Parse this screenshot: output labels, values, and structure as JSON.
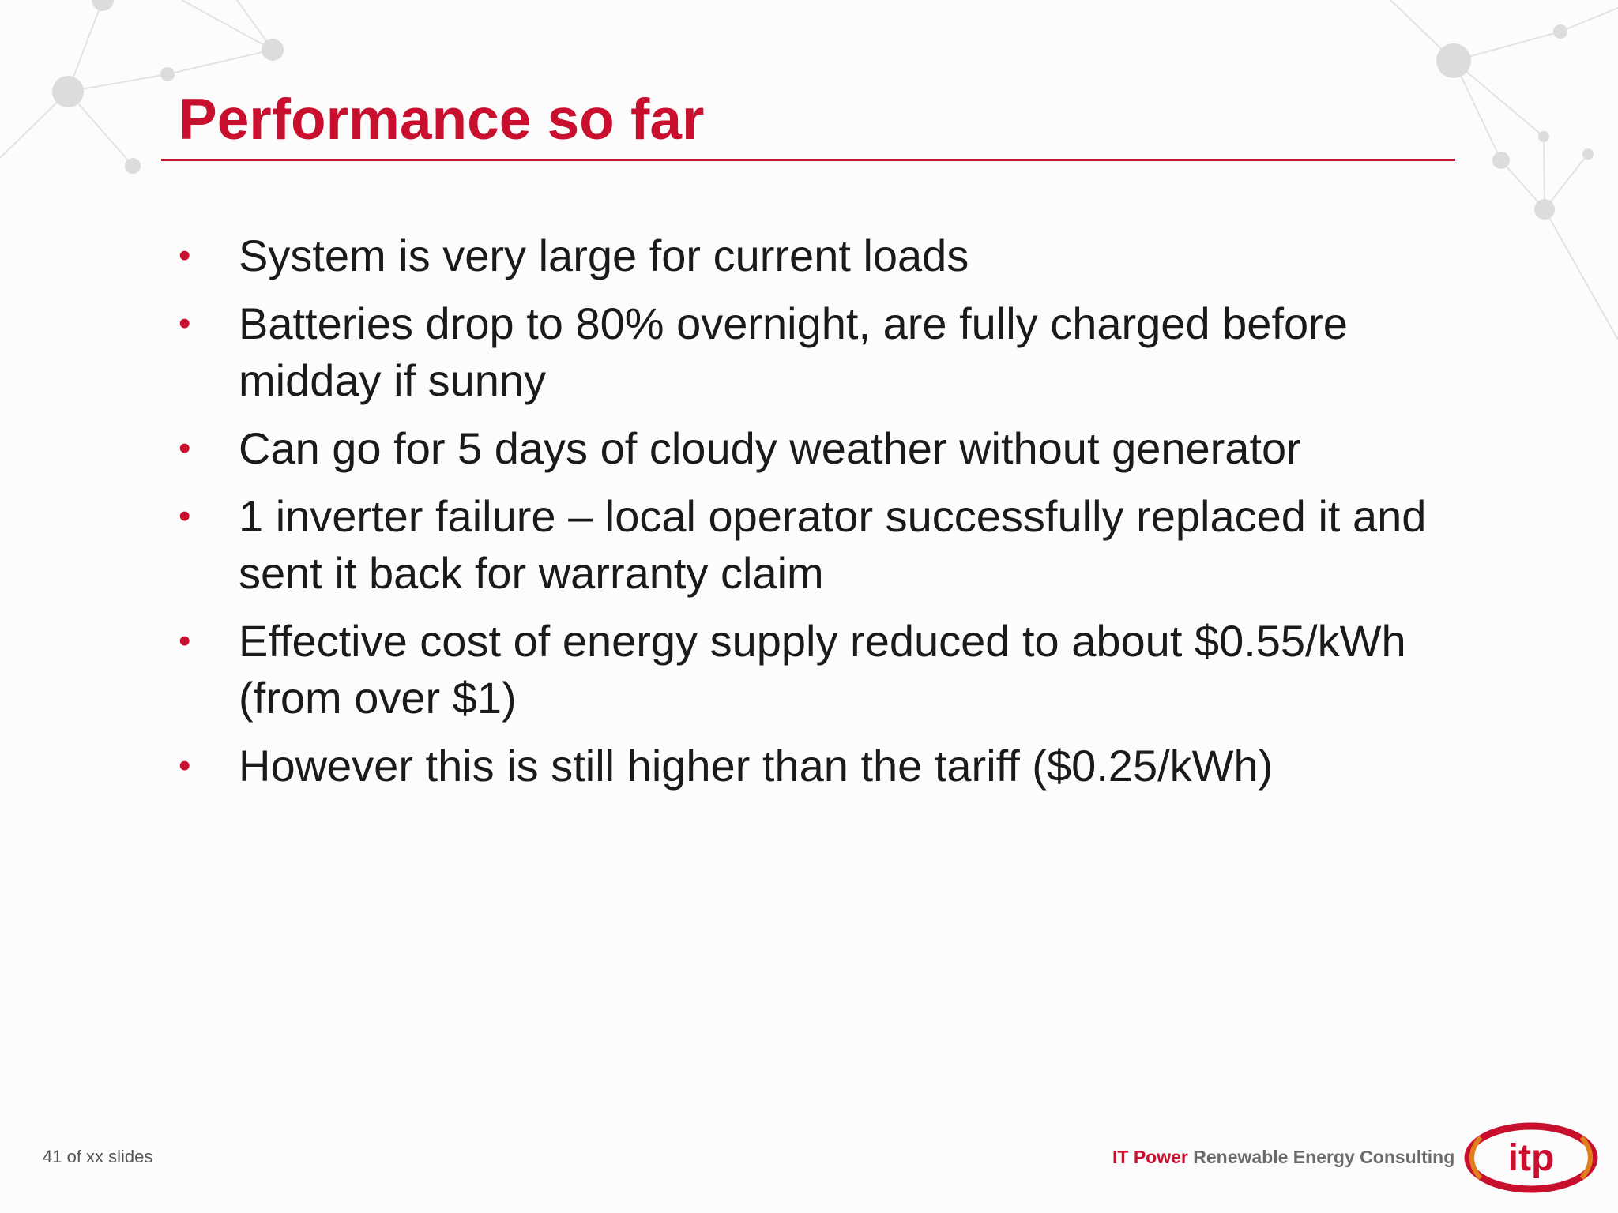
{
  "slide": {
    "title": "Performance so far",
    "bullets": [
      "System is very large for current loads",
      "Batteries drop to 80% overnight, are fully charged before midday if sunny",
      "Can go for 5 days of cloudy weather without generator",
      "1 inverter failure – local operator successfully replaced it and sent it back for warranty claim",
      "Effective cost of energy supply reduced to about $0.55/kWh (from over $1)",
      "However this is still higher than the tariff ($0.25/kWh)"
    ],
    "bullet_glyph": "•"
  },
  "footer": {
    "slide_count": "41 of xx slides",
    "brand_name": "IT Power",
    "brand_tagline": "Renewable Energy Consulting",
    "logo_text": "itp"
  },
  "colors": {
    "accent": "#c8102e",
    "text": "#1a1a1a",
    "network": "#dedede"
  }
}
